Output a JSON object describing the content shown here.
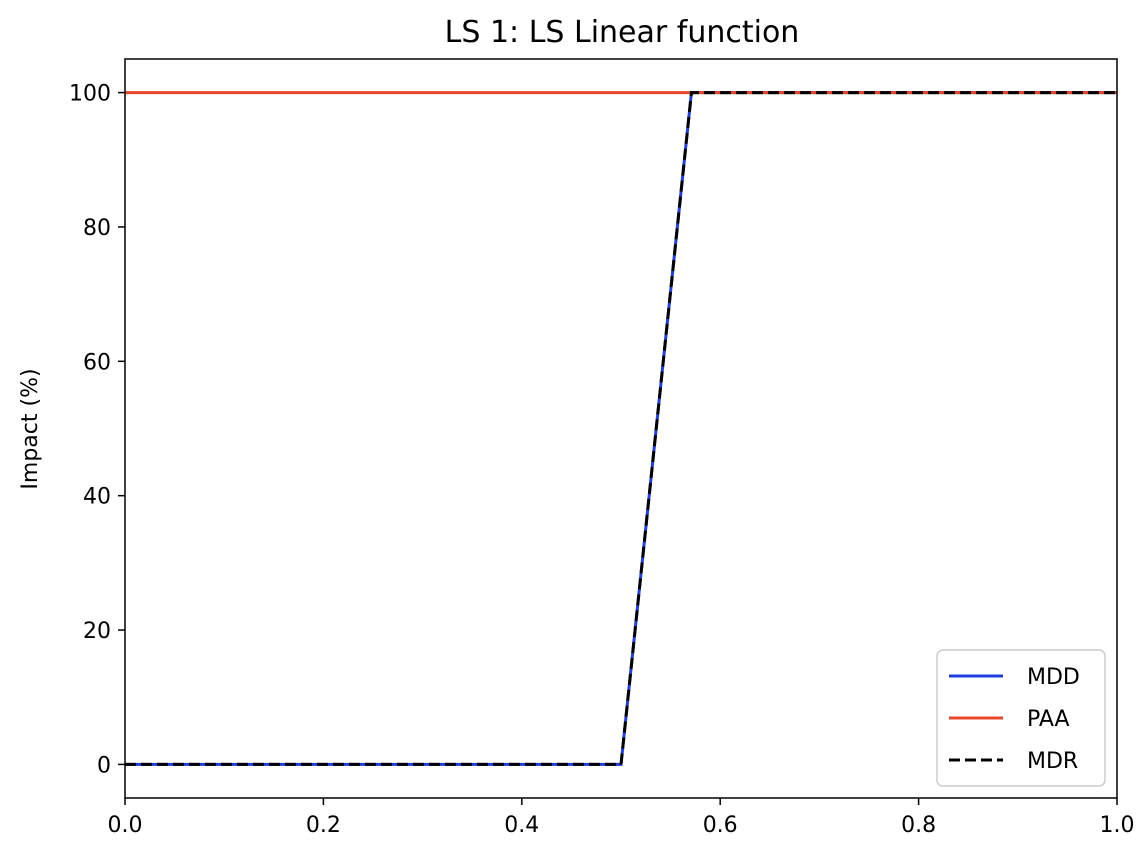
{
  "chart_data": {
    "type": "line",
    "title": "LS 1: LS Linear function",
    "xlabel": "",
    "ylabel": "Impact (%)",
    "xlim": [
      0,
      1
    ],
    "ylim": [
      -5,
      105
    ],
    "xticks": [
      "0.0",
      "0.2",
      "0.4",
      "0.6",
      "0.8",
      "1.0"
    ],
    "xtick_values": [
      0,
      0.2,
      0.4,
      0.6,
      0.8,
      1.0
    ],
    "yticks": [
      "0",
      "20",
      "40",
      "60",
      "80",
      "100"
    ],
    "ytick_values": [
      0,
      20,
      40,
      60,
      80,
      100
    ],
    "grid": false,
    "legend_position": "lower-right",
    "series": [
      {
        "name": "MDD",
        "color": "#1f3de0",
        "style": "solid",
        "x": [
          0,
          0.5,
          0.571,
          1.0
        ],
        "y": [
          0,
          0,
          100,
          100
        ]
      },
      {
        "name": "PAA",
        "color": "#e8472a",
        "style": "solid",
        "x": [
          0,
          1.0
        ],
        "y": [
          100,
          100
        ]
      },
      {
        "name": "MDR",
        "color": "#000000",
        "style": "dashed",
        "x": [
          0,
          0.5,
          0.571,
          1.0
        ],
        "y": [
          0,
          0,
          100,
          100
        ]
      }
    ]
  }
}
